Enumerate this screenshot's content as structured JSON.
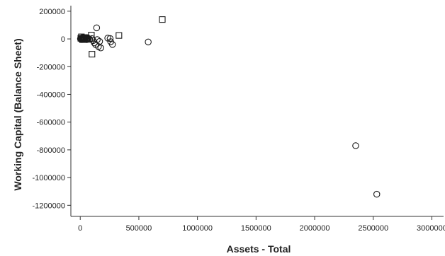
{
  "chart_data": {
    "type": "scatter",
    "title": "",
    "xlabel": "Assets - Total",
    "ylabel": "Working Capital (Balance Sheet)",
    "xlim": [
      -80000,
      3100000
    ],
    "ylim": [
      -1280000,
      240000
    ],
    "x_ticks": [
      0,
      500000,
      1000000,
      1500000,
      2000000,
      2500000,
      3000000
    ],
    "x_tick_labels": [
      "0",
      "500000",
      "1000000",
      "1500000",
      "2000000",
      "2500000",
      "3000000"
    ],
    "y_ticks": [
      200000,
      0,
      -200000,
      -400000,
      -600000,
      -800000,
      -1000000,
      -1200000
    ],
    "y_tick_labels": [
      "200000",
      "0",
      "-200000",
      "-400000",
      "-600000",
      "-800000",
      "-1000000",
      "-1200000"
    ],
    "grid": false,
    "legend": null,
    "colors": {
      "marker_stroke": "#1a1a1a",
      "axis": "#333333",
      "text": "#222222"
    },
    "series": [
      {
        "marker": "circle",
        "points": [
          [
            2000,
            1000
          ],
          [
            5000,
            -2000
          ],
          [
            8000,
            6000
          ],
          [
            12000,
            3000
          ],
          [
            15000,
            -4000
          ],
          [
            18000,
            8000
          ],
          [
            22000,
            2000
          ],
          [
            25000,
            -1000
          ],
          [
            28000,
            5000
          ],
          [
            32000,
            10000
          ],
          [
            35000,
            -3000
          ],
          [
            40000,
            4000
          ],
          [
            45000,
            8000
          ],
          [
            50000,
            1000
          ],
          [
            55000,
            -5000
          ],
          [
            60000,
            9000
          ],
          [
            70000,
            3000
          ],
          [
            80000,
            -1000
          ],
          [
            100000,
            2000
          ],
          [
            110000,
            -12000
          ],
          [
            120000,
            -28000
          ],
          [
            130000,
            -40000
          ],
          [
            140000,
            80000
          ],
          [
            145000,
            -5000
          ],
          [
            155000,
            -55000
          ],
          [
            165000,
            -18000
          ],
          [
            175000,
            -65000
          ],
          [
            235000,
            6000
          ],
          [
            255000,
            3000
          ],
          [
            260000,
            -20000
          ],
          [
            275000,
            -40000
          ],
          [
            580000,
            -22000
          ],
          [
            2350000,
            -770000
          ],
          [
            2530000,
            -1120000
          ]
        ]
      },
      {
        "marker": "square",
        "points": [
          [
            5000,
            5000
          ],
          [
            10000,
            15000
          ],
          [
            20000,
            -5000
          ],
          [
            35000,
            10000
          ],
          [
            50000,
            8000
          ],
          [
            60000,
            -3000
          ],
          [
            95000,
            28000
          ],
          [
            100000,
            -110000
          ],
          [
            330000,
            25000
          ],
          [
            700000,
            140000
          ]
        ]
      }
    ]
  }
}
